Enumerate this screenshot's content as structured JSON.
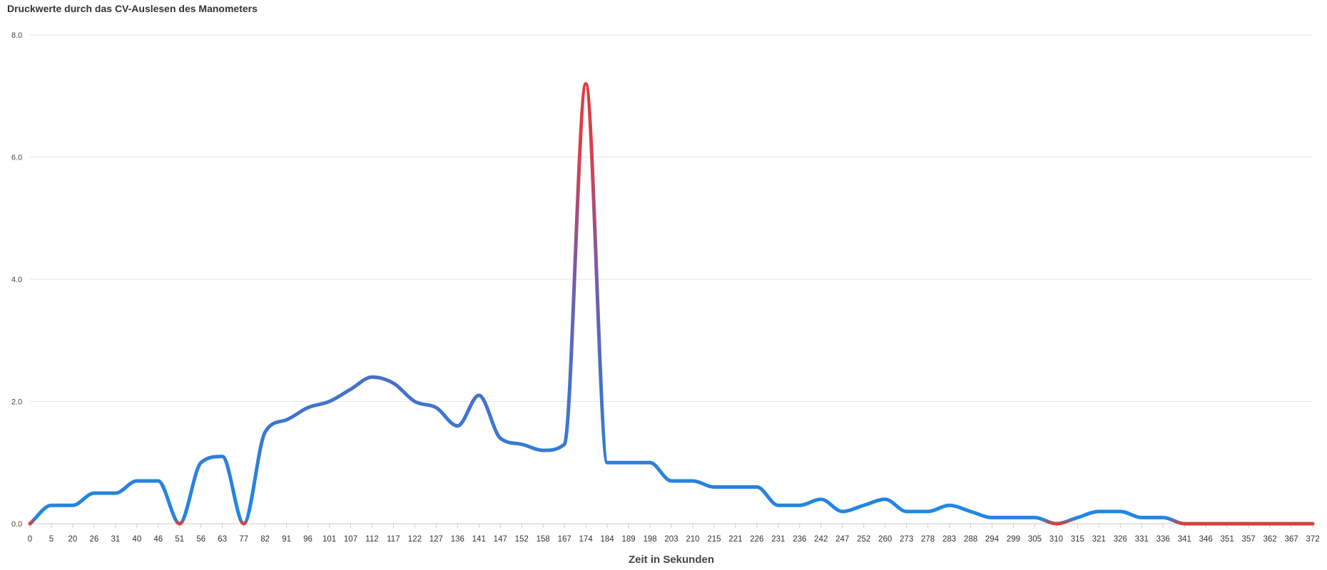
{
  "chart_data": {
    "type": "line",
    "title": "Druckwerte durch das CV-Auslesen des Manometers",
    "xlabel": "Zeit in Sekunden",
    "ylabel": "",
    "ylim": [
      0,
      8
    ],
    "yticks": [
      "0.0",
      "2.0",
      "4.0",
      "6.0",
      "8.0"
    ],
    "grid": true,
    "categories": [
      "0",
      "5",
      "20",
      "26",
      "31",
      "40",
      "46",
      "51",
      "56",
      "63",
      "77",
      "82",
      "91",
      "96",
      "101",
      "107",
      "112",
      "117",
      "122",
      "127",
      "136",
      "141",
      "147",
      "152",
      "158",
      "167",
      "174",
      "184",
      "189",
      "198",
      "203",
      "210",
      "215",
      "221",
      "226",
      "231",
      "236",
      "242",
      "247",
      "252",
      "260",
      "273",
      "278",
      "283",
      "288",
      "294",
      "299",
      "305",
      "310",
      "315",
      "321",
      "326",
      "331",
      "336",
      "341",
      "346",
      "351",
      "357",
      "362",
      "367",
      "372"
    ],
    "series": [
      {
        "values": [
          0.0,
          0.3,
          0.3,
          0.5,
          0.5,
          0.7,
          0.7,
          0.0,
          1.0,
          1.1,
          0.0,
          1.5,
          1.7,
          1.9,
          2.0,
          2.2,
          2.4,
          2.3,
          2.0,
          1.9,
          1.6,
          2.1,
          1.4,
          1.3,
          1.2,
          1.3,
          7.2,
          1.0,
          1.0,
          1.0,
          0.7,
          0.7,
          0.6,
          0.6,
          0.6,
          0.3,
          0.3,
          0.4,
          0.2,
          0.3,
          0.4,
          0.2,
          0.2,
          0.3,
          0.2,
          0.1,
          0.1,
          0.1,
          0.0,
          0.1,
          0.2,
          0.2,
          0.1,
          0.1,
          0.0,
          0.0,
          0.0,
          0.0,
          0.0,
          0.0,
          0.0
        ]
      }
    ],
    "colors": {
      "low": "#1e88e5",
      "high": "#e53935",
      "grid": "#e6e6e6",
      "axis": "#cccccc"
    }
  }
}
